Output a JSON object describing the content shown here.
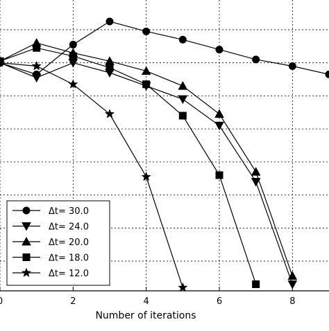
{
  "chart_data": {
    "type": "line",
    "title": "",
    "xlabel": "Number of iterations",
    "ylabel": "",
    "xlim": [
      0,
      9
    ],
    "ylim": [
      -6.9,
      1.9
    ],
    "x_ticks": [
      0,
      2,
      4,
      6,
      8
    ],
    "y_gridlines": [
      -6.0,
      -5.0,
      -4.0,
      -3.0,
      -2.0,
      -1.0,
      0.0,
      1.0
    ],
    "grid": true,
    "legend_position": "lower-left",
    "series": [
      {
        "name": "Δt= 30.0",
        "marker": "circle",
        "x": [
          0,
          1,
          2,
          3,
          4,
          5,
          6,
          7,
          8,
          9
        ],
        "y": [
          0.0,
          -0.35,
          0.55,
          1.25,
          0.95,
          0.7,
          0.4,
          0.1,
          -0.1,
          -0.35
        ]
      },
      {
        "name": "Δt= 24.0",
        "marker": "triangle-down",
        "x": [
          0,
          1,
          2,
          3,
          4,
          5,
          6,
          7,
          8
        ],
        "y": [
          0.0,
          -0.45,
          0.0,
          -0.3,
          -0.7,
          -1.1,
          -1.9,
          -3.6,
          -6.7
        ]
      },
      {
        "name": "Δt= 20.0",
        "marker": "triangle-up",
        "x": [
          0,
          1,
          2,
          3,
          4,
          5,
          6,
          7,
          8
        ],
        "y": [
          0.05,
          0.6,
          0.3,
          0.05,
          -0.25,
          -0.7,
          -1.55,
          -3.3,
          -6.45
        ]
      },
      {
        "name": "Δt= 18.0",
        "marker": "square",
        "x": [
          0,
          1,
          2,
          3,
          4,
          5,
          6,
          7
        ],
        "y": [
          0.05,
          0.45,
          0.2,
          -0.15,
          -0.65,
          -1.6,
          -3.4,
          -6.7
        ]
      },
      {
        "name": "Δt= 12.0",
        "marker": "star",
        "x": [
          0,
          1,
          2,
          3,
          4,
          5
        ],
        "y": [
          0.0,
          -0.1,
          -0.65,
          -1.55,
          -3.45,
          -6.8
        ]
      }
    ]
  }
}
